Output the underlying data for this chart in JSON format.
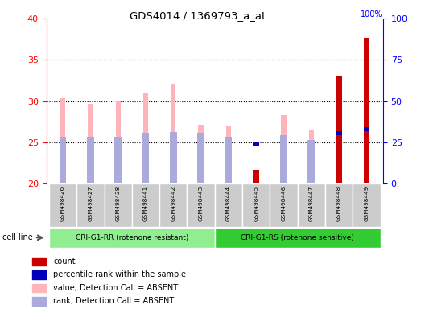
{
  "title": "GDS4014 / 1369793_a_at",
  "samples": [
    "GSM498426",
    "GSM498427",
    "GSM498428",
    "GSM498441",
    "GSM498442",
    "GSM498443",
    "GSM498444",
    "GSM498445",
    "GSM498446",
    "GSM498447",
    "GSM498448",
    "GSM498449"
  ],
  "group1_count": 6,
  "group2_count": 6,
  "group1_label": "CRI-G1-RR (rotenone resistant)",
  "group2_label": "CRI-G1-RS (rotenone sensitive)",
  "cell_line_label": "cell line",
  "values_pink": [
    30.4,
    29.7,
    30.0,
    31.0,
    32.0,
    27.2,
    27.1,
    null,
    28.3,
    26.5,
    null,
    null
  ],
  "rank_blue_light": [
    25.7,
    25.7,
    25.7,
    26.2,
    26.3,
    26.2,
    25.7,
    null,
    25.9,
    25.3,
    26.1,
    null
  ],
  "count_red": [
    null,
    null,
    null,
    null,
    null,
    null,
    null,
    21.7,
    null,
    null,
    33.0,
    37.7
  ],
  "rank_blue_dark": [
    null,
    null,
    null,
    null,
    null,
    null,
    null,
    24.8,
    null,
    null,
    26.1,
    26.6
  ],
  "y_min": 20,
  "y_max": 40,
  "y_ticks": [
    20,
    25,
    30,
    35,
    40
  ],
  "y2_ticks": [
    0,
    25,
    50,
    75,
    100
  ],
  "color_pink": "#FFB3BA",
  "color_light_blue": "#AAAADD",
  "color_red": "#CC0000",
  "color_blue": "#0000BB",
  "color_group1_bg": "#90EE90",
  "color_group2_bg": "#33CC33",
  "color_sample_bg": "#CCCCCC",
  "legend_items": [
    "count",
    "percentile rank within the sample",
    "value, Detection Call = ABSENT",
    "rank, Detection Call = ABSENT"
  ],
  "legend_colors": [
    "#CC0000",
    "#0000BB",
    "#FFB3BA",
    "#AAAADD"
  ]
}
